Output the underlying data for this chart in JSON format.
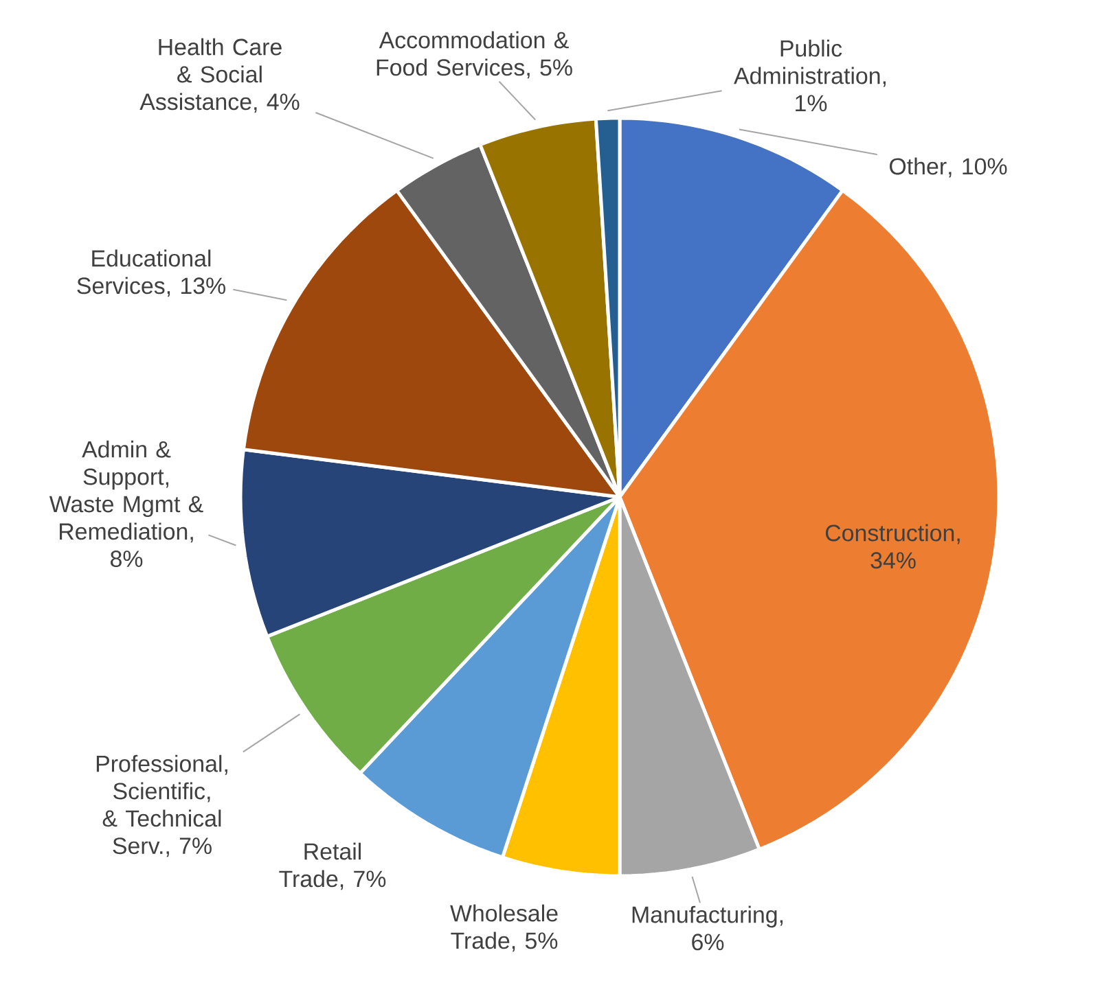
{
  "chart_data": {
    "type": "pie",
    "categories": [
      "Other",
      "Construction",
      "Manufacturing",
      "Wholesale Trade",
      "Retail Trade",
      "Professional, Scientific, & Technical Serv.",
      "Admin & Support, Waste Mgmt & Remediation",
      "Educational Services",
      "Health Care & Social Assistance",
      "Accommodation & Food Services",
      "Public Administration"
    ],
    "values": [
      10,
      34,
      6,
      5,
      7,
      7,
      8,
      13,
      4,
      5,
      1
    ],
    "value_labels": [
      ", 10%",
      ", 34%",
      ", 6%",
      ", 5%",
      ", 7%",
      ", 7%",
      ", 8%",
      ", 13%",
      ", 4%",
      ", 5%",
      ", 1%"
    ],
    "colors": [
      "#4472c4",
      "#ed7d31",
      "#a5a5a5",
      "#ffc000",
      "#5b9bd5",
      "#70ad47",
      "#264478",
      "#9e480e",
      "#636363",
      "#997300",
      "#255e91"
    ]
  }
}
